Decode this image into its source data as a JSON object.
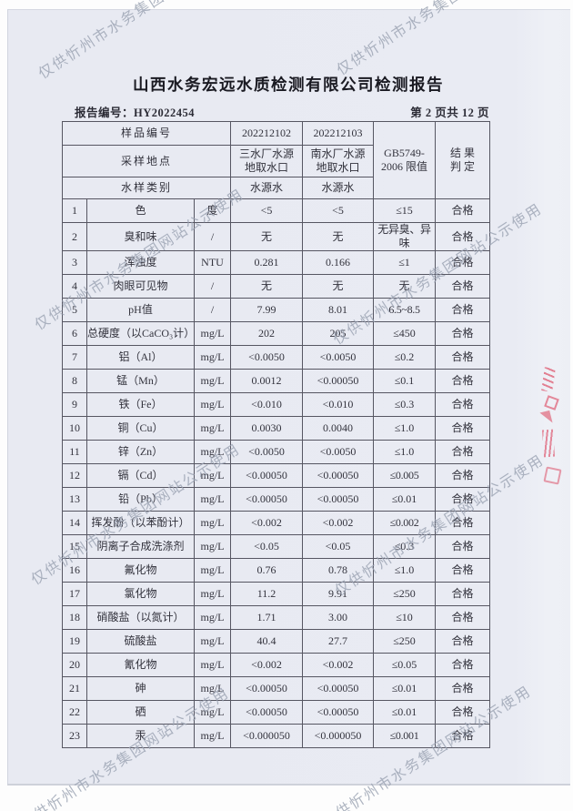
{
  "watermark": {
    "text": "仅供忻州市水务集团网站公示使用",
    "color": "#9aa2b2"
  },
  "seal_color": "#dd5068",
  "report": {
    "title": "山西水务宏远水质检测有限公司检测报告",
    "report_no_label": "报告编号：",
    "report_no": "HY2022454",
    "page_info": "第 2 页共 12 页"
  },
  "table": {
    "header": {
      "sample_no_label": "样品编号",
      "sample_no_1": "202212102",
      "sample_no_2": "202212103",
      "location_label": "采样地点",
      "location_1": "三水厂水源\n地取水口",
      "location_2": "南水厂水源\n地取水口",
      "type_label": "水样类别",
      "type_1": "水源水",
      "type_2": "水源水",
      "limit_header": "GB5749-\n2006 限值",
      "result_header": "结 果\n判 定"
    },
    "rows": [
      [
        "1",
        "色",
        "度",
        "<5",
        "<5",
        "≤15",
        "合格"
      ],
      [
        "2",
        "臭和味",
        "/",
        "无",
        "无",
        "无异臭、异味",
        "合格"
      ],
      [
        "3",
        "浑浊度",
        "NTU",
        "0.281",
        "0.166",
        "≤1",
        "合格"
      ],
      [
        "4",
        "肉眼可见物",
        "/",
        "无",
        "无",
        "无",
        "合格"
      ],
      [
        "5",
        "pH值",
        "/",
        "7.99",
        "8.01",
        "6.5~8.5",
        "合格"
      ],
      [
        "6",
        "总硬度（以CaCO₃计）",
        "mg/L",
        "202",
        "205",
        "≤450",
        "合格"
      ],
      [
        "7",
        "铝（Al）",
        "mg/L",
        "<0.0050",
        "<0.0050",
        "≤0.2",
        "合格"
      ],
      [
        "8",
        "锰（Mn）",
        "mg/L",
        "0.0012",
        "<0.00050",
        "≤0.1",
        "合格"
      ],
      [
        "9",
        "铁（Fe）",
        "mg/L",
        "<0.010",
        "<0.010",
        "≤0.3",
        "合格"
      ],
      [
        "10",
        "铜（Cu）",
        "mg/L",
        "0.0030",
        "0.0040",
        "≤1.0",
        "合格"
      ],
      [
        "11",
        "锌（Zn）",
        "mg/L",
        "<0.0050",
        "<0.0050",
        "≤1.0",
        "合格"
      ],
      [
        "12",
        "镉（Cd）",
        "mg/L",
        "<0.00050",
        "<0.00050",
        "≤0.005",
        "合格"
      ],
      [
        "13",
        "铅（Pb）",
        "mg/L",
        "<0.00050",
        "<0.00050",
        "≤0.01",
        "合格"
      ],
      [
        "14",
        "挥发酚（以苯酚计）",
        "mg/L",
        "<0.002",
        "<0.002",
        "≤0.002",
        "合格"
      ],
      [
        "15",
        "阴离子合成洗涤剂",
        "mg/L",
        "<0.05",
        "<0.05",
        "≤0.3",
        "合格"
      ],
      [
        "16",
        "氟化物",
        "mg/L",
        "0.76",
        "0.78",
        "≤1.0",
        "合格"
      ],
      [
        "17",
        "氯化物",
        "mg/L",
        "11.2",
        "9.91",
        "≤250",
        "合格"
      ],
      [
        "18",
        "硝酸盐（以氮计）",
        "mg/L",
        "1.71",
        "3.00",
        "≤10",
        "合格"
      ],
      [
        "19",
        "硫酸盐",
        "mg/L",
        "40.4",
        "27.7",
        "≤250",
        "合格"
      ],
      [
        "20",
        "氰化物",
        "mg/L",
        "<0.002",
        "<0.002",
        "≤0.05",
        "合格"
      ],
      [
        "21",
        "砷",
        "mg/L",
        "<0.00050",
        "<0.00050",
        "≤0.01",
        "合格"
      ],
      [
        "22",
        "硒",
        "mg/L",
        "<0.00050",
        "<0.00050",
        "≤0.01",
        "合格"
      ],
      [
        "23",
        "汞",
        "mg/L",
        "<0.000050",
        "<0.000050",
        "≤0.001",
        "合格"
      ]
    ]
  }
}
